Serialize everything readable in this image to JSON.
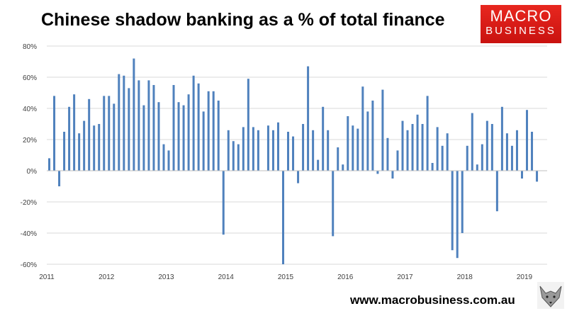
{
  "header": {
    "title": "Chinese shadow banking as a % of total finance"
  },
  "logo": {
    "line1": "MACRO",
    "line2": "BUSINESS"
  },
  "footer": {
    "url": "www.macrobusiness.com.au"
  },
  "colors": {
    "bar": "#4f81bd",
    "logo": "#e41f1a",
    "grid": "#d9d9d9"
  },
  "icons": {
    "brand_mark": "wolf-icon"
  },
  "chart_data": {
    "type": "bar",
    "title": "Chinese shadow banking as a % of total finance",
    "xlabel": "",
    "ylabel": "",
    "ylim": [
      -60,
      80
    ],
    "y_ticks": [
      "80%",
      "60%",
      "40%",
      "20%",
      "0%",
      "-20%",
      "-40%",
      "-60%"
    ],
    "x_ticks": [
      "2011",
      "2012",
      "2013",
      "2014",
      "2015",
      "2016",
      "2017",
      "2018",
      "2019"
    ],
    "grid": "horizontal",
    "start": "2011-01",
    "frequency": "monthly",
    "series": [
      {
        "values": [
          8,
          48,
          -10,
          25,
          41,
          49,
          24,
          32,
          46,
          29,
          30,
          48,
          48,
          43,
          62,
          61,
          53,
          72,
          58,
          42,
          58,
          55,
          44,
          17,
          13,
          55,
          44,
          42,
          49,
          61,
          56,
          38,
          51,
          51,
          45,
          -41,
          26,
          19,
          17,
          28,
          59,
          28,
          26,
          0,
          29,
          26,
          31,
          -60,
          25,
          22,
          -8,
          30,
          67,
          26,
          7,
          41,
          26,
          -42,
          15,
          4,
          35,
          29,
          27,
          54,
          38,
          45,
          -2,
          52,
          21,
          -5,
          13,
          32,
          26,
          30,
          36,
          30,
          48,
          5,
          28,
          16,
          24,
          -51,
          -56,
          -40,
          16,
          37,
          4,
          17,
          32,
          30,
          -26,
          41,
          24,
          16,
          26,
          -5,
          39,
          25,
          -7
        ]
      }
    ]
  }
}
